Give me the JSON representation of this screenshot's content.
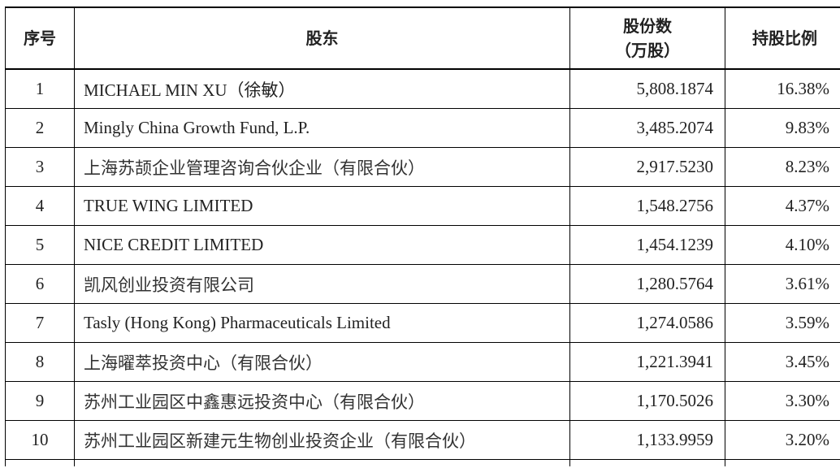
{
  "table": {
    "headers": {
      "index": "序号",
      "shareholder": "股东",
      "shares_line1": "股份数",
      "shares_line2": "（万股）",
      "ratio": "持股比例"
    },
    "rows": [
      {
        "index": "1",
        "name": "MICHAEL MIN XU（徐敏）",
        "shares": "5,808.1874",
        "ratio": "16.38%"
      },
      {
        "index": "2",
        "name": "Mingly China Growth Fund, L.P.",
        "shares": "3,485.2074",
        "ratio": "9.83%"
      },
      {
        "index": "3",
        "name": "上海苏颉企业管理咨询合伙企业（有限合伙）",
        "shares": "2,917.5230",
        "ratio": "8.23%"
      },
      {
        "index": "4",
        "name": "TRUE WING LIMITED",
        "shares": "1,548.2756",
        "ratio": "4.37%"
      },
      {
        "index": "5",
        "name": "NICE CREDIT LIMITED",
        "shares": "1,454.1239",
        "ratio": "4.10%"
      },
      {
        "index": "6",
        "name": "凯风创业投资有限公司",
        "shares": "1,280.5764",
        "ratio": "3.61%"
      },
      {
        "index": "7",
        "name": "Tasly (Hong Kong) Pharmaceuticals Limited",
        "shares": "1,274.0586",
        "ratio": "3.59%"
      },
      {
        "index": "8",
        "name": "上海曜萃投资中心（有限合伙）",
        "shares": "1,221.3941",
        "ratio": "3.45%"
      },
      {
        "index": "9",
        "name": "苏州工业园区中鑫惠远投资中心（有限合伙）",
        "shares": "1,170.5026",
        "ratio": "3.30%"
      },
      {
        "index": "10",
        "name": "苏州工业园区新建元生物创业投资企业（有限合伙）",
        "shares": "1,133.9959",
        "ratio": "3.20%"
      }
    ]
  }
}
